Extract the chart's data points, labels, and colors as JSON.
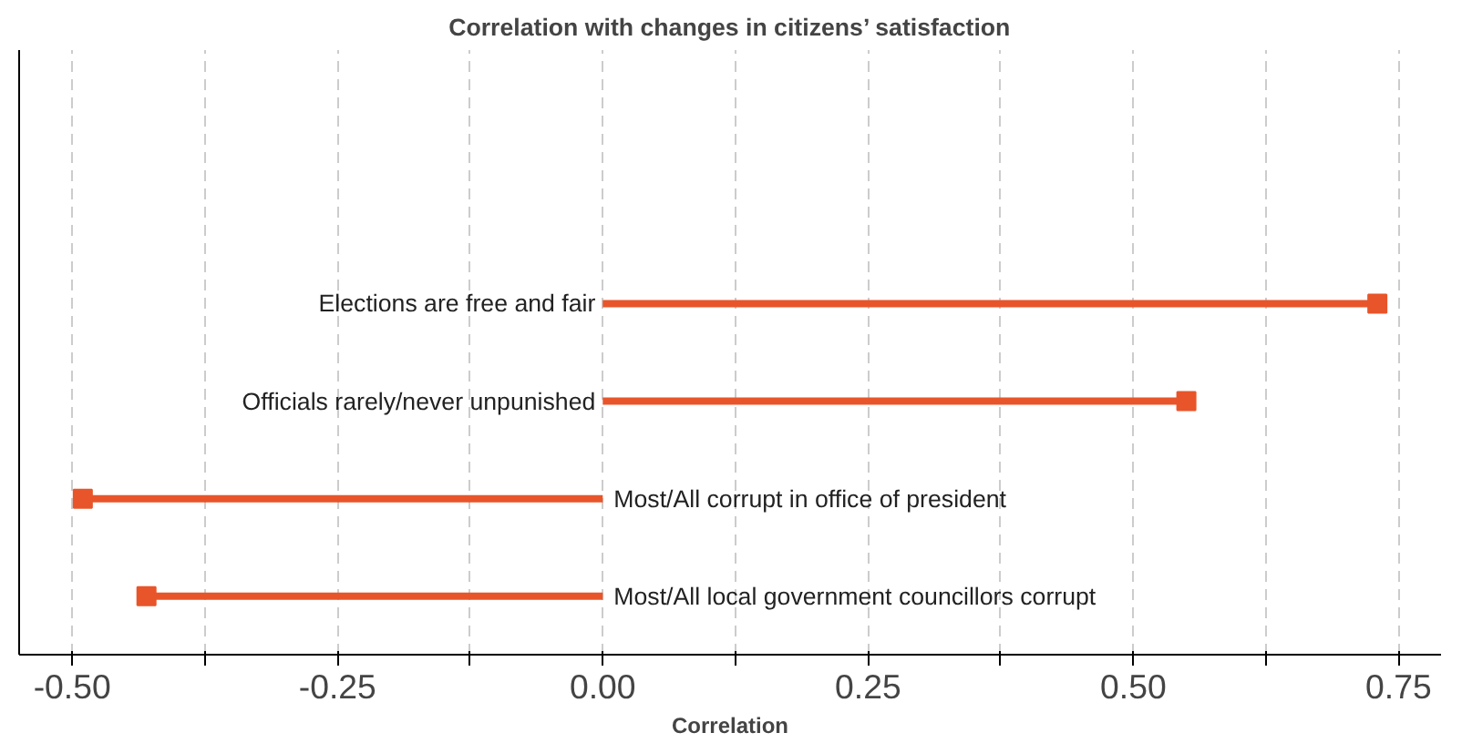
{
  "chart_data": {
    "type": "lollipop",
    "orientation": "horizontal",
    "title": "Correlation with changes in citizens’ satisfaction",
    "xlabel": "Correlation",
    "categories": [
      "Elections are free and fair",
      "Officials rarely/never unpunished",
      "Most/All corrupt in office of president",
      "Most/All local government councillors corrupt"
    ],
    "values": [
      0.73,
      0.55,
      -0.49,
      -0.43
    ],
    "color": "#e8552a",
    "marker": "square",
    "xlim": [
      -0.55,
      0.79
    ],
    "xticks": [
      {
        "value": -0.5,
        "label": "-0.50"
      },
      {
        "value": -0.375,
        "label": null
      },
      {
        "value": -0.25,
        "label": "-0.25"
      },
      {
        "value": -0.125,
        "label": null
      },
      {
        "value": 0,
        "label": "0.00"
      },
      {
        "value": 0.125,
        "label": null
      },
      {
        "value": 0.25,
        "label": "0.25"
      },
      {
        "value": 0.375,
        "label": null
      },
      {
        "value": 0.5,
        "label": "0.50"
      },
      {
        "value": 0.625,
        "label": null
      },
      {
        "value": 0.75,
        "label": "0.75"
      }
    ],
    "grid": "x",
    "tick_labels": "x"
  }
}
